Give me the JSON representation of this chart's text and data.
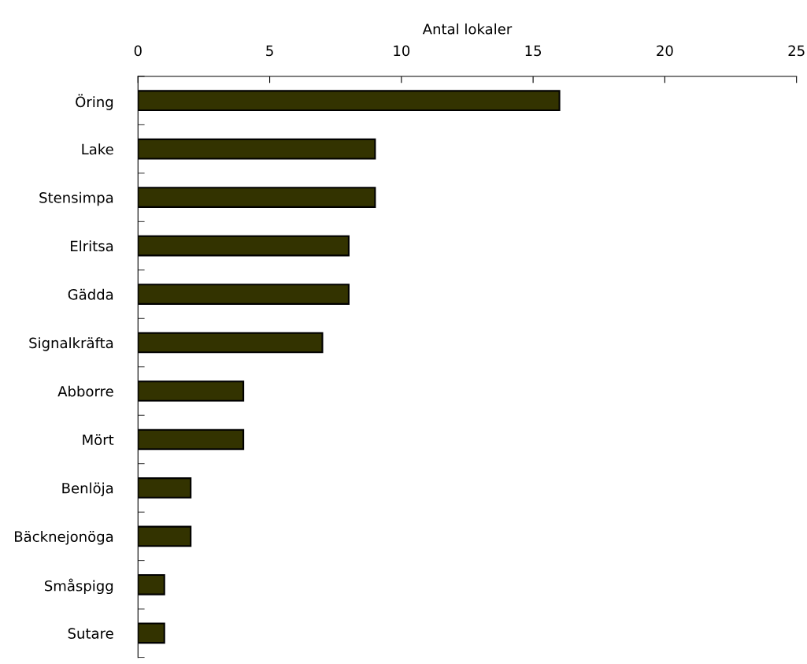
{
  "chart_data": {
    "type": "bar",
    "orientation": "horizontal",
    "xlabel": "Antal lokaler",
    "categories": [
      "Öring",
      "Lake",
      "Stensimpa",
      "Elritsa",
      "Gädda",
      "Signalkräfta",
      "Abborre",
      "Mört",
      "Benlöja",
      "Bäcknejonöga",
      "Småspigg",
      "Sutare"
    ],
    "values": [
      16,
      9,
      9,
      8,
      8,
      7,
      4,
      4,
      2,
      2,
      1,
      1
    ],
    "color": "#333300",
    "xlim": [
      0,
      25
    ],
    "xticks": [
      0,
      5,
      10,
      15,
      20,
      25
    ],
    "grid": false
  }
}
